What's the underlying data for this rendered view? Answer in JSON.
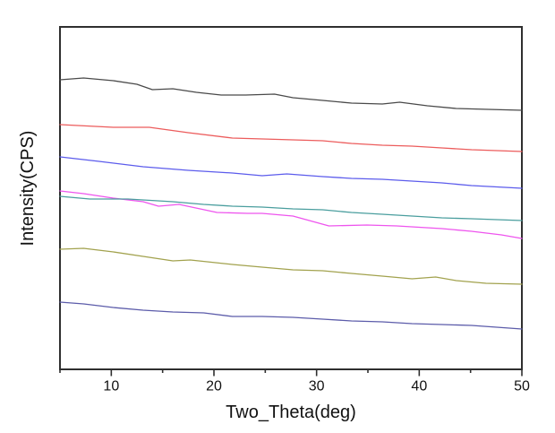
{
  "figure": {
    "background": "#ffffff",
    "frame_color": "#2f2f2f",
    "text_color": "#111111"
  },
  "chart_data": {
    "type": "line",
    "title": "",
    "xlabel": "Two_Theta(deg)",
    "ylabel": "Intensity(CPS)",
    "xlim": [
      5,
      50
    ],
    "x_major_ticks": [
      10,
      20,
      30,
      40,
      50
    ],
    "x_minor_ticks": [
      5,
      15,
      25,
      35,
      45
    ],
    "y_tick_labels": [],
    "y_note": "no y-axis scale shown; y values below are arbitrary intensity units (px above x-axis)",
    "ylim": [
      0,
      383
    ],
    "grid": false,
    "legend": null,
    "series": [
      {
        "name": "curve-1-black",
        "color": "#4a4a4a",
        "x": [
          5,
          7.3,
          10.2,
          12.5,
          14,
          16,
          18.3,
          20.7,
          23.1,
          25.9,
          27.7,
          30.6,
          33.4,
          36.4,
          38.1,
          40.8,
          43.6,
          46.7,
          50
        ],
        "y": [
          324,
          326,
          323,
          319,
          313,
          314,
          310,
          307,
          307,
          308,
          304,
          301,
          298,
          297,
          299,
          295,
          292,
          291,
          290
        ]
      },
      {
        "name": "curve-2-red",
        "color": "#ec5c5c",
        "x": [
          5,
          10.2,
          13.7,
          17.5,
          21.8,
          27.7,
          30.6,
          33.4,
          36.4,
          39.3,
          42.2,
          45.1,
          50
        ],
        "y": [
          274,
          271,
          271,
          265,
          259,
          257,
          256,
          253,
          251,
          250,
          248,
          246,
          244
        ]
      },
      {
        "name": "curve-3-blue",
        "color": "#5c5cec",
        "x": [
          5,
          8.8,
          13.1,
          17.5,
          21.8,
          24.7,
          27.1,
          30.6,
          33.4,
          36.4,
          39.3,
          42.2,
          45.1,
          50
        ],
        "y": [
          238,
          233,
          227,
          223,
          220,
          217,
          219,
          216,
          214,
          213,
          211,
          209,
          206,
          203
        ]
      },
      {
        "name": "curve-4-magenta",
        "color": "#ee55ee",
        "x": [
          5,
          7.3,
          10.2,
          13.1,
          14.6,
          16.6,
          20.3,
          23.3,
          24.7,
          27.7,
          31.2,
          34.9,
          37.8,
          42.2,
          45.1,
          48,
          50
        ],
        "y": [
          200,
          197,
          192,
          188,
          183,
          185,
          176,
          175,
          175,
          172,
          161,
          162,
          161,
          158,
          155,
          151,
          147
        ]
      },
      {
        "name": "curve-5-dark-cyan",
        "color": "#4a9e9e",
        "x": [
          5,
          7.9,
          11.6,
          16,
          19,
          21.8,
          24.7,
          27.7,
          30.6,
          33.4,
          36.4,
          39.3,
          42.2,
          45.1,
          50
        ],
        "y": [
          194,
          191,
          191,
          188,
          185,
          183,
          182,
          180,
          179,
          176,
          174,
          172,
          170,
          169,
          167
        ]
      },
      {
        "name": "curve-6-dark-yellow",
        "color": "#a2a24e",
        "x": [
          5,
          7.3,
          10.2,
          13.1,
          16,
          17.7,
          21.8,
          24.7,
          27.7,
          30.6,
          33.4,
          36.4,
          39.3,
          41.6,
          43.6,
          46.5,
          50
        ],
        "y": [
          135,
          136,
          132,
          127,
          122,
          123,
          118,
          115,
          112,
          111,
          108,
          105,
          102,
          104,
          100,
          97,
          96
        ]
      },
      {
        "name": "curve-7-navy",
        "color": "#5c5caa",
        "x": [
          5,
          7.3,
          10.2,
          13.1,
          16,
          19,
          21.8,
          24.7,
          27.7,
          30.6,
          33.4,
          36.4,
          39.3,
          42.2,
          45.1,
          50
        ],
        "y": [
          76,
          74,
          70,
          67,
          65,
          64,
          60,
          60,
          59,
          57,
          55,
          54,
          52,
          51,
          50,
          46
        ]
      }
    ]
  }
}
